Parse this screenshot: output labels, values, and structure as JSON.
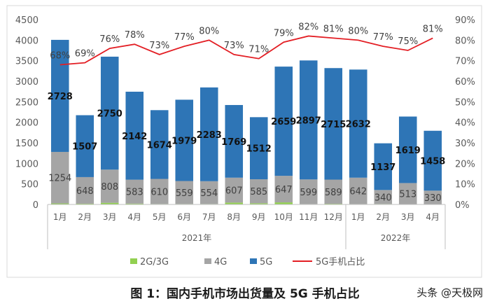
{
  "chart_data": {
    "type": "bar",
    "stacked": true,
    "categories": [
      "1月",
      "2月",
      "3月",
      "4月",
      "5月",
      "6月",
      "7月",
      "8月",
      "9月",
      "10月",
      "11月",
      "12月",
      "1月",
      "2月",
      "3月",
      "4月"
    ],
    "groups": [
      {
        "label": "2021年",
        "count": 12
      },
      {
        "label": "2022年",
        "count": 4
      }
    ],
    "series": [
      {
        "name": "2G/3G",
        "color": "#92d050",
        "values": [
          25,
          18,
          40,
          20,
          12,
          12,
          12,
          45,
          28,
          50,
          10,
          16,
          10,
          12,
          8,
          6
        ]
      },
      {
        "name": "4G",
        "color": "#a5a5a5",
        "values": [
          1254,
          648,
          808,
          583,
          610,
          559,
          554,
          607,
          585,
          647,
          599,
          589,
          642,
          340,
          513,
          330
        ]
      },
      {
        "name": "5G",
        "color": "#2e75b6",
        "values": [
          2728,
          1507,
          2750,
          2142,
          1674,
          1979,
          2283,
          1769,
          1512,
          2659,
          2897,
          2715,
          2632,
          1137,
          1619,
          1458
        ]
      }
    ],
    "line_series": {
      "name": "5G手机占比",
      "color": "#e31e24",
      "values": [
        68,
        69,
        76,
        78,
        73,
        77,
        80,
        73,
        71,
        79,
        82,
        81,
        80,
        77,
        75,
        81
      ]
    },
    "ylim_left": [
      0,
      4500
    ],
    "yticks_left": [
      "0",
      "500",
      "1000",
      "1500",
      "2000",
      "2500",
      "3000",
      "3500",
      "4000",
      "4500"
    ],
    "ylim_right": [
      0,
      90
    ],
    "yticks_right": [
      "0%",
      "10%",
      "20%",
      "30%",
      "40%",
      "50%",
      "60%",
      "70%",
      "80%",
      "90%"
    ],
    "legend_position": "bottom",
    "grid": false
  },
  "caption": "图 1：国内手机市场出货量及 5G 手机占比",
  "watermark": "头条 @天极网"
}
